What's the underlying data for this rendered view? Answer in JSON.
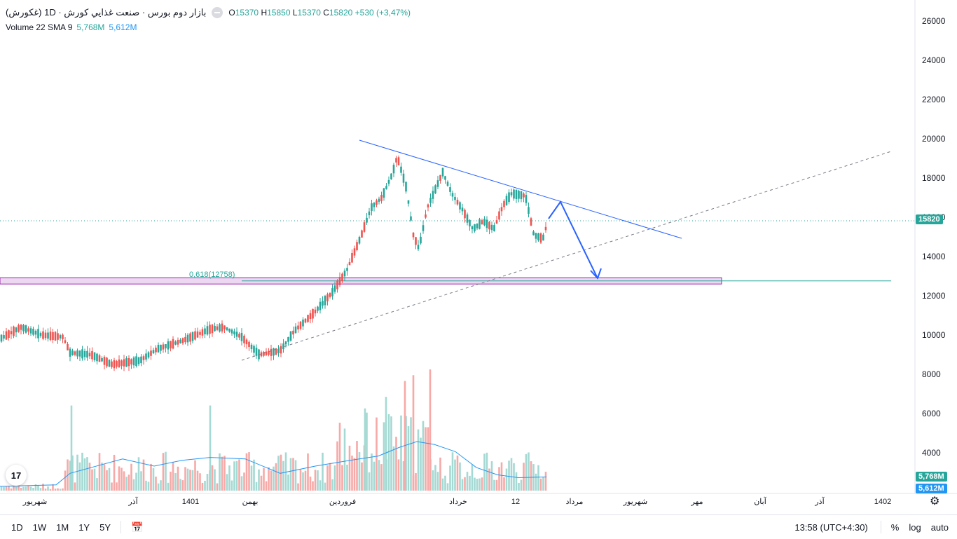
{
  "header": {
    "title": "بازار دوم بورس · صنعت غذايي كورش · 1D (غكورش)",
    "ohlc": {
      "o_label": "O",
      "o": "15370",
      "h_label": "H",
      "h": "15850",
      "l_label": "L",
      "l": "15370",
      "c_label": "C",
      "c": "15820",
      "change": "+530 (+3,47%)"
    },
    "volume_label": "Volume 22 SMA 9",
    "volume_value": "5,768M",
    "sma_value": "5,612M"
  },
  "price_tags": {
    "last_price": "15820",
    "volume": "5,768M",
    "sma": "5,612M"
  },
  "fib_label": "0,618(12758)",
  "bottom_bar": {
    "timeframes": [
      "1D",
      "1W",
      "1M",
      "1Y",
      "5Y"
    ],
    "clock": "13:58 (UTC+4:30)",
    "percent": "%",
    "log": "log",
    "auto": "auto"
  },
  "colors": {
    "up": "#26a69a",
    "down": "#ef5350",
    "trendline": "#2962ff",
    "zone": "#9c27b0",
    "sma": "#2196f3"
  },
  "chart_data": {
    "type": "candlestick",
    "title": "صنعت غذايي كورش (غكورش) 1D",
    "y_axis": {
      "ticks": [
        4000,
        6000,
        8000,
        10000,
        12000,
        14000,
        16000,
        18000,
        20000,
        22000,
        24000,
        26000
      ],
      "range": [
        2400,
        26900
      ]
    },
    "x_axis": {
      "labels": [
        "شهریور",
        "آذر",
        "1401",
        "بهمن",
        "فروردین",
        "خرداد",
        "12",
        "مرداد",
        "شهریور",
        "مهر",
        "آبان",
        "آذر",
        "1402"
      ]
    },
    "last_close": 15820,
    "fib_level": 12758,
    "demand_zone": [
      12600,
      12920
    ],
    "volume_axis_max_millions": 8.5,
    "volume_sma_last_millions": 5.612,
    "volume_last_millions": 5.768
  }
}
